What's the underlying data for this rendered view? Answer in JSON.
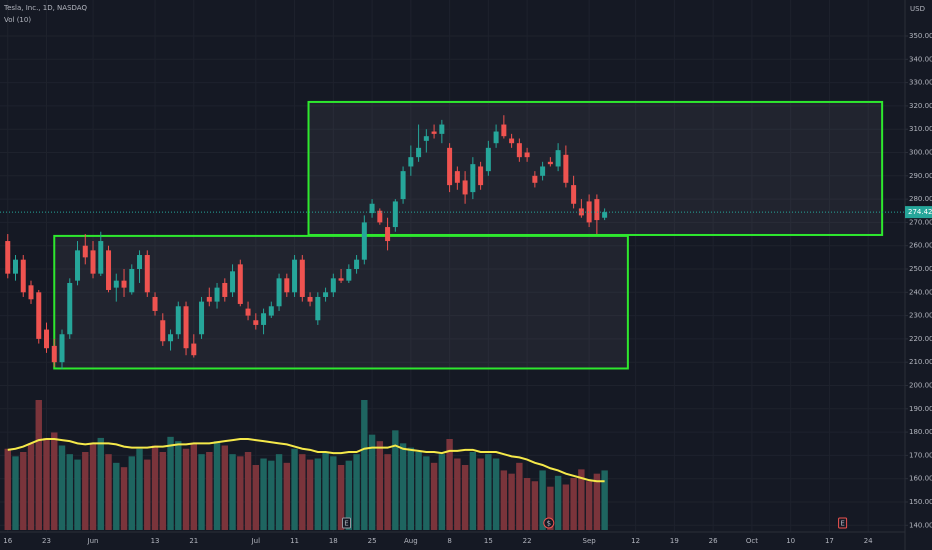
{
  "chart_data": {
    "type": "candlestick",
    "title": "Tesla, Inc., 1D, NASDAQ",
    "volume_title": "Vol (10)",
    "currency": "USD",
    "up_color": "#26a69a",
    "down_color": "#ef5350",
    "volume_up_color": "#1e6560",
    "volume_down_color": "#7a343b",
    "volume_ma_color": "#f5e94a",
    "box_color": "#2ee82e",
    "grid": true,
    "xlim": [
      -1,
      115.75
    ],
    "ylim": [
      134.55,
      365.45
    ],
    "vlim": [
      0,
      180
    ],
    "yticks": [
      {
        "value": 140,
        "label": "140.00"
      },
      {
        "value": 150,
        "label": "150.00"
      },
      {
        "value": 160,
        "label": "160.00"
      },
      {
        "value": 170,
        "label": "170.00"
      },
      {
        "value": 180,
        "label": "180.00"
      },
      {
        "value": 190,
        "label": "190.00"
      },
      {
        "value": 200,
        "label": "200.00"
      },
      {
        "value": 210,
        "label": "210.00"
      },
      {
        "value": 220,
        "label": "220.00"
      },
      {
        "value": 230,
        "label": "230.00"
      },
      {
        "value": 240,
        "label": "240.00"
      },
      {
        "value": 250,
        "label": "250.00"
      },
      {
        "value": 260,
        "label": "260.00"
      },
      {
        "value": 270,
        "label": "270.00"
      },
      {
        "value": 280,
        "label": "280.00"
      },
      {
        "value": 290,
        "label": "290.00"
      },
      {
        "value": 300,
        "label": "300.00"
      },
      {
        "value": 310,
        "label": "310.00"
      },
      {
        "value": 320,
        "label": "320.00"
      },
      {
        "value": 330,
        "label": "330.00"
      },
      {
        "value": 340,
        "label": "340.00"
      },
      {
        "value": 350,
        "label": "350.00"
      }
    ],
    "xticks": [
      {
        "value": 0,
        "label": "16"
      },
      {
        "value": 5,
        "label": "23"
      },
      {
        "value": 11,
        "label": "Jun"
      },
      {
        "value": 19,
        "label": "13"
      },
      {
        "value": 24,
        "label": "21"
      },
      {
        "value": 32,
        "label": "Jul"
      },
      {
        "value": 37,
        "label": "11"
      },
      {
        "value": 42,
        "label": "18"
      },
      {
        "value": 47,
        "label": "25"
      },
      {
        "value": 52,
        "label": "Aug"
      },
      {
        "value": 57,
        "label": "8"
      },
      {
        "value": 62,
        "label": "15"
      },
      {
        "value": 67,
        "label": "22"
      },
      {
        "value": 75,
        "label": "Sep"
      },
      {
        "value": 81,
        "label": "12"
      },
      {
        "value": 86,
        "label": "19"
      },
      {
        "value": 91,
        "label": "26"
      },
      {
        "value": 96,
        "label": "Oct"
      },
      {
        "value": 101,
        "label": "10"
      },
      {
        "value": 106,
        "label": "17"
      },
      {
        "value": 111,
        "label": "24"
      }
    ],
    "last_price": 274.42,
    "candles": [
      {
        "open": 262,
        "high": 265,
        "low": 246,
        "close": 248
      },
      {
        "open": 248,
        "high": 256,
        "low": 245,
        "close": 254
      },
      {
        "open": 254,
        "high": 256,
        "low": 238,
        "close": 240
      },
      {
        "open": 243,
        "high": 245,
        "low": 235,
        "close": 237
      },
      {
        "open": 240,
        "high": 241,
        "low": 218,
        "close": 220
      },
      {
        "open": 224,
        "high": 227,
        "low": 214,
        "close": 216
      },
      {
        "open": 217,
        "high": 220,
        "low": 208,
        "close": 210
      },
      {
        "open": 210,
        "high": 224,
        "low": 207,
        "close": 222
      },
      {
        "open": 222,
        "high": 246,
        "low": 220,
        "close": 244
      },
      {
        "open": 245,
        "high": 262,
        "low": 243,
        "close": 258
      },
      {
        "open": 260,
        "high": 265,
        "low": 252,
        "close": 255
      },
      {
        "open": 258,
        "high": 262,
        "low": 246,
        "close": 248
      },
      {
        "open": 248,
        "high": 266,
        "low": 247,
        "close": 262
      },
      {
        "open": 258,
        "high": 260,
        "low": 240,
        "close": 241
      },
      {
        "open": 242,
        "high": 248,
        "low": 236,
        "close": 245
      },
      {
        "open": 245,
        "high": 250,
        "low": 238,
        "close": 242
      },
      {
        "open": 240,
        "high": 252,
        "low": 239,
        "close": 250
      },
      {
        "open": 250,
        "high": 258,
        "low": 244,
        "close": 256
      },
      {
        "open": 256,
        "high": 258,
        "low": 238,
        "close": 240
      },
      {
        "open": 238,
        "high": 240,
        "low": 230,
        "close": 232
      },
      {
        "open": 228,
        "high": 231,
        "low": 217,
        "close": 219
      },
      {
        "open": 219,
        "high": 224,
        "low": 215,
        "close": 222
      },
      {
        "open": 222,
        "high": 236,
        "low": 220,
        "close": 234
      },
      {
        "open": 234,
        "high": 236,
        "low": 213,
        "close": 216
      },
      {
        "open": 218,
        "high": 222,
        "low": 212,
        "close": 213
      },
      {
        "open": 222,
        "high": 238,
        "low": 220,
        "close": 236
      },
      {
        "open": 238,
        "high": 242,
        "low": 234,
        "close": 236
      },
      {
        "open": 236,
        "high": 244,
        "low": 233,
        "close": 242
      },
      {
        "open": 244,
        "high": 246,
        "low": 236,
        "close": 238
      },
      {
        "open": 240,
        "high": 252,
        "low": 238,
        "close": 249
      },
      {
        "open": 252,
        "high": 254,
        "low": 234,
        "close": 235
      },
      {
        "open": 233,
        "high": 236,
        "low": 228,
        "close": 230
      },
      {
        "open": 228,
        "high": 231,
        "low": 224,
        "close": 226
      },
      {
        "open": 226,
        "high": 233,
        "low": 222,
        "close": 231
      },
      {
        "open": 230,
        "high": 236,
        "low": 229,
        "close": 234
      },
      {
        "open": 234,
        "high": 248,
        "low": 232,
        "close": 246
      },
      {
        "open": 246,
        "high": 248,
        "low": 238,
        "close": 240
      },
      {
        "open": 240,
        "high": 256,
        "low": 238,
        "close": 254
      },
      {
        "open": 254,
        "high": 256,
        "low": 236,
        "close": 238
      },
      {
        "open": 238,
        "high": 240,
        "low": 234,
        "close": 236
      },
      {
        "open": 228,
        "high": 240,
        "low": 226,
        "close": 238
      },
      {
        "open": 238,
        "high": 242,
        "low": 236,
        "close": 240
      },
      {
        "open": 240,
        "high": 248,
        "low": 238,
        "close": 246
      },
      {
        "open": 246,
        "high": 250,
        "low": 244,
        "close": 245
      },
      {
        "open": 245,
        "high": 252,
        "low": 244,
        "close": 250
      },
      {
        "open": 250,
        "high": 256,
        "low": 248,
        "close": 254
      },
      {
        "open": 254,
        "high": 273,
        "low": 252,
        "close": 270
      },
      {
        "open": 274,
        "high": 280,
        "low": 272,
        "close": 278
      },
      {
        "open": 275,
        "high": 276,
        "low": 269,
        "close": 270
      },
      {
        "open": 268,
        "high": 272,
        "low": 258,
        "close": 262
      },
      {
        "open": 268,
        "high": 280,
        "low": 266,
        "close": 279
      },
      {
        "open": 280,
        "high": 294,
        "low": 278,
        "close": 292
      },
      {
        "open": 294,
        "high": 303,
        "low": 290,
        "close": 298
      },
      {
        "open": 298,
        "high": 312,
        "low": 296,
        "close": 302
      },
      {
        "open": 305,
        "high": 310,
        "low": 300,
        "close": 307
      },
      {
        "open": 309,
        "high": 312,
        "low": 306,
        "close": 308
      },
      {
        "open": 308,
        "high": 314,
        "low": 304,
        "close": 312
      },
      {
        "open": 302,
        "high": 304,
        "low": 283,
        "close": 286
      },
      {
        "open": 292,
        "high": 294,
        "low": 284,
        "close": 287
      },
      {
        "open": 288,
        "high": 292,
        "low": 278,
        "close": 282
      },
      {
        "open": 283,
        "high": 298,
        "low": 280,
        "close": 295
      },
      {
        "open": 294,
        "high": 296,
        "low": 284,
        "close": 286
      },
      {
        "open": 292,
        "high": 305,
        "low": 290,
        "close": 302
      },
      {
        "open": 304,
        "high": 312,
        "low": 302,
        "close": 309
      },
      {
        "open": 312,
        "high": 316,
        "low": 306,
        "close": 307
      },
      {
        "open": 306,
        "high": 308,
        "low": 302,
        "close": 304
      },
      {
        "open": 304,
        "high": 306,
        "low": 296,
        "close": 298
      },
      {
        "open": 300,
        "high": 302,
        "low": 296,
        "close": 298
      },
      {
        "open": 290,
        "high": 292,
        "low": 285,
        "close": 287
      },
      {
        "open": 290,
        "high": 296,
        "low": 288,
        "close": 294
      },
      {
        "open": 296,
        "high": 298,
        "low": 294,
        "close": 295
      },
      {
        "open": 294,
        "high": 304,
        "low": 292,
        "close": 301
      },
      {
        "open": 299,
        "high": 303,
        "low": 285,
        "close": 287
      },
      {
        "open": 286,
        "high": 290,
        "low": 276,
        "close": 278
      },
      {
        "open": 276,
        "high": 280,
        "low": 272,
        "close": 273
      },
      {
        "open": 279,
        "high": 282,
        "low": 268,
        "close": 270
      },
      {
        "open": 280,
        "high": 282,
        "low": 265,
        "close": 271
      },
      {
        "open": 272,
        "high": 276,
        "low": 271,
        "close": 274.42
      }
    ],
    "volumes": [
      75,
      68,
      72,
      80,
      120,
      85,
      90,
      78,
      70,
      65,
      72,
      80,
      85,
      70,
      62,
      58,
      68,
      75,
      65,
      78,
      72,
      86,
      82,
      75,
      80,
      70,
      72,
      82,
      78,
      70,
      68,
      72,
      60,
      66,
      64,
      70,
      62,
      75,
      70,
      65,
      66,
      72,
      68,
      60,
      64,
      70,
      120,
      88,
      82,
      70,
      92,
      80,
      76,
      72,
      68,
      62,
      70,
      84,
      66,
      60,
      72,
      66,
      70,
      66,
      55,
      52,
      62,
      48,
      45,
      55,
      40,
      50,
      42,
      48,
      56,
      45,
      52,
      55
    ],
    "volume_ma": [
      74,
      75,
      77,
      80,
      83,
      84,
      84,
      83,
      82,
      80,
      79,
      80,
      80,
      80,
      79,
      77,
      76,
      76,
      76,
      77,
      77,
      78,
      79,
      79,
      80,
      80,
      80,
      81,
      82,
      83,
      84,
      84,
      83,
      82,
      81,
      80,
      79,
      77,
      75,
      74,
      72,
      72,
      71,
      71,
      72,
      72,
      75,
      76,
      76,
      76,
      78,
      75,
      74,
      73,
      72,
      72,
      71,
      73,
      73,
      74,
      74,
      72,
      72,
      72,
      70,
      68,
      67,
      65,
      62,
      60,
      57,
      55,
      52,
      50,
      48,
      46,
      45,
      45
    ],
    "boxes": [
      {
        "x": [
          6,
          80
        ],
        "y": [
          207.3,
          264.2
        ]
      },
      {
        "x": [
          38.8,
          112.8
        ],
        "y": [
          264.6,
          321.7
        ]
      }
    ],
    "events": [
      {
        "x": 43.7,
        "label": "E"
      },
      {
        "x": 69.8,
        "label": "$"
      },
      {
        "x": 107.7,
        "label": "E"
      }
    ]
  }
}
